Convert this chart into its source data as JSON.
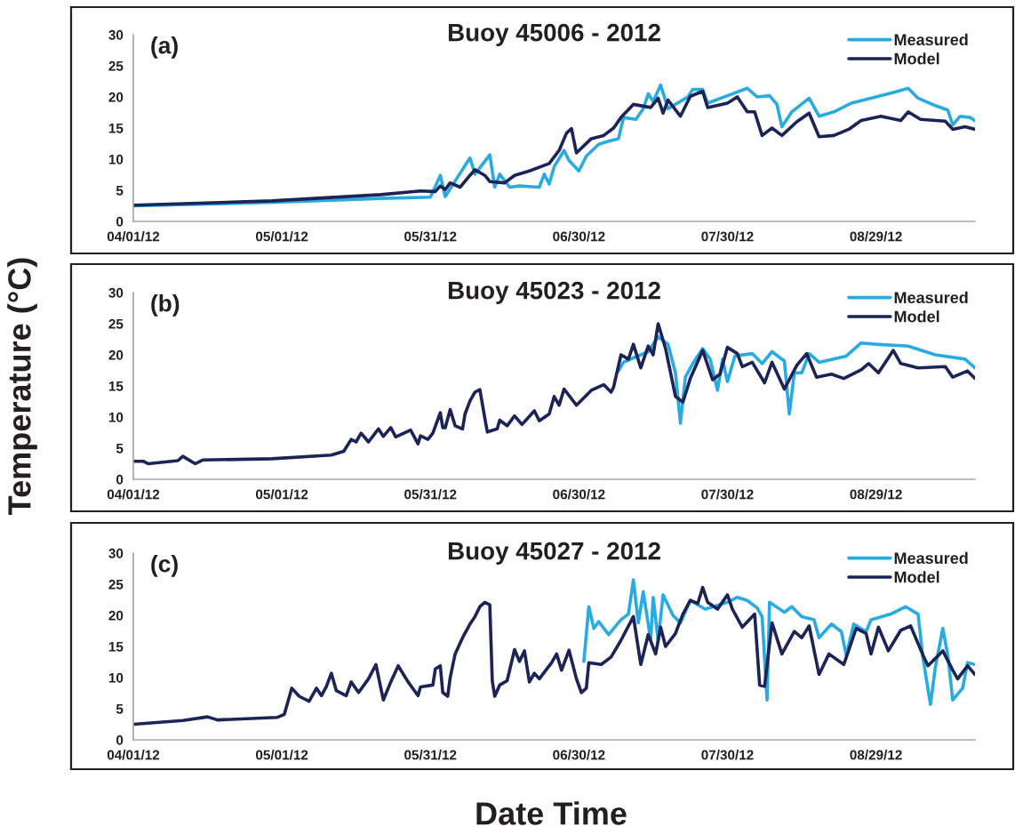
{
  "chart_data": [
    {
      "type": "line",
      "title": "Buoy 45006 - 2012",
      "annotations": [
        "(a)"
      ],
      "legend": "top right",
      "grid": false,
      "xlim": [
        "2012-04-01",
        "2012-09-18"
      ],
      "ylim": [
        0,
        30
      ],
      "yticks": [
        0,
        5,
        10,
        15,
        20,
        25,
        30
      ],
      "xticks": [
        {
          "value": "2012-04-01",
          "label": "04/01/12"
        },
        {
          "value": "2012-05-01",
          "label": "05/01/12"
        },
        {
          "value": "2012-05-31",
          "label": "05/31/12"
        },
        {
          "value": "2012-06-30",
          "label": "06/30/12"
        },
        {
          "value": "2012-07-30",
          "label": "07/30/12"
        },
        {
          "value": "2012-08-29",
          "label": "08/29/12"
        }
      ],
      "series": [
        {
          "name": "Measured",
          "color": "#29abe2",
          "x": [
            "2012-04-01",
            "2012-05-01",
            "2012-05-21",
            "2012-05-31",
            "2012-06-02",
            "2012-06-03",
            "2012-06-08",
            "2012-06-09",
            "2012-06-12",
            "2012-06-13",
            "2012-06-14",
            "2012-06-16",
            "2012-06-18",
            "2012-06-22",
            "2012-06-23",
            "2012-06-24",
            "2012-06-25",
            "2012-06-27",
            "2012-06-28",
            "2012-06-30",
            "2012-07-01T12:00",
            "2012-07-04",
            "2012-07-06",
            "2012-07-08",
            "2012-07-09",
            "2012-07-11T12:00",
            "2012-07-13",
            "2012-07-14",
            "2012-07-15",
            "2012-07-16T12:00",
            "2012-07-18",
            "2012-07-22",
            "2012-07-23",
            "2012-07-25",
            "2012-07-26",
            "2012-07-30",
            "2012-08-03",
            "2012-08-05",
            "2012-08-07T12:00",
            "2012-08-09",
            "2012-08-10",
            "2012-08-12",
            "2012-08-15T12:00",
            "2012-08-17T12:00",
            "2012-08-20T12:00",
            "2012-08-24",
            "2012-08-29",
            "2012-09-01T12:00",
            "2012-09-04T12:00",
            "2012-09-06T12:00",
            "2012-09-10",
            "2012-09-12T12:00",
            "2012-09-13T12:00",
            "2012-09-15",
            "2012-09-17",
            "2012-09-18"
          ],
          "values": [
            2.5,
            3.1,
            3.7,
            3.9,
            7.4,
            4.0,
            10.2,
            7.6,
            10.7,
            5.5,
            7.6,
            5.5,
            5.7,
            5.5,
            7.6,
            6.0,
            8.8,
            11.4,
            9.8,
            8.1,
            10.5,
            12.4,
            12.9,
            13.3,
            16.7,
            16.4,
            18.1,
            20.5,
            19.3,
            21.9,
            18.1,
            20,
            21.2,
            21.2,
            19,
            20.2,
            21.4,
            20,
            20.2,
            18.8,
            15.2,
            17.6,
            19.8,
            16.9,
            17.6,
            19,
            20,
            20.7,
            21.4,
            19.8,
            18.6,
            17.9,
            15.5,
            16.9,
            16.7,
            16.2
          ]
        },
        {
          "name": "Model",
          "color": "#1b2357",
          "x": [
            "2012-04-01",
            "2012-04-29",
            "2012-05-21",
            "2012-05-29",
            "2012-06-01",
            "2012-06-02",
            "2012-06-03",
            "2012-06-04",
            "2012-06-06",
            "2012-06-08",
            "2012-06-09",
            "2012-06-11",
            "2012-06-12",
            "2012-06-15",
            "2012-06-17",
            "2012-06-20",
            "2012-06-24",
            "2012-06-26",
            "2012-06-27T12:00",
            "2012-06-28T12:00",
            "2012-06-29T12:00",
            "2012-07-02T12:00",
            "2012-07-05",
            "2012-07-07",
            "2012-07-08T12:00",
            "2012-07-11",
            "2012-07-14T12:00",
            "2012-07-16",
            "2012-07-17",
            "2012-07-18",
            "2012-07-20T12:00",
            "2012-07-22T12:00",
            "2012-07-25",
            "2012-07-26",
            "2012-07-30",
            "2012-08-01",
            "2012-08-03",
            "2012-08-04T12:00",
            "2012-08-06",
            "2012-08-08",
            "2012-08-10",
            "2012-08-13",
            "2012-08-15T12:00",
            "2012-08-17T12:00",
            "2012-08-20T12:00",
            "2012-08-23T12:00",
            "2012-08-26",
            "2012-08-30",
            "2012-09-03",
            "2012-09-04T12:00",
            "2012-09-07",
            "2012-09-12",
            "2012-09-13T12:00",
            "2012-09-16",
            "2012-09-18"
          ],
          "values": [
            2.6,
            3.3,
            4.3,
            4.9,
            4.8,
            5.7,
            5.1,
            6.2,
            5.5,
            7.4,
            8.3,
            7.4,
            6.4,
            6.2,
            7.4,
            8.1,
            9.3,
            11.4,
            14.2,
            14.9,
            11,
            13.3,
            13.8,
            15,
            16.7,
            18.8,
            18.3,
            19.8,
            17.4,
            19.5,
            16.9,
            20.1,
            20.9,
            18.3,
            19,
            20,
            17.6,
            17.6,
            13.8,
            15,
            13.8,
            16,
            17.4,
            13.6,
            13.8,
            14.8,
            16.2,
            16.9,
            16.2,
            17.6,
            16.4,
            16.1,
            14.8,
            15.2,
            14.8
          ]
        }
      ]
    },
    {
      "type": "line",
      "title": "Buoy 45023 - 2012",
      "annotations": [
        "(b)"
      ],
      "legend": "top right",
      "grid": false,
      "ylabel": "Temperature (°C)",
      "xlim": [
        "2012-04-01",
        "2012-09-18"
      ],
      "ylim": [
        0,
        30
      ],
      "yticks": [
        0,
        5,
        10,
        15,
        20,
        25,
        30
      ],
      "xticks": [
        {
          "value": "2012-04-01",
          "label": "04/01/12"
        },
        {
          "value": "2012-05-01",
          "label": "05/01/12"
        },
        {
          "value": "2012-05-31",
          "label": "05/31/12"
        },
        {
          "value": "2012-06-30",
          "label": "06/30/12"
        },
        {
          "value": "2012-07-30",
          "label": "07/30/12"
        },
        {
          "value": "2012-08-29",
          "label": "08/29/12"
        }
      ],
      "series": [
        {
          "name": "Measured",
          "color": "#29abe2",
          "x": [
            "2012-07-08",
            "2012-07-09",
            "2012-07-11",
            "2012-07-14",
            "2012-07-16",
            "2012-07-18",
            "2012-07-19T12:00",
            "2012-07-20T12:00",
            "2012-07-21T12:00",
            "2012-07-23",
            "2012-07-25",
            "2012-07-26T12:00",
            "2012-07-28",
            "2012-07-29",
            "2012-07-30",
            "2012-07-31T12:00",
            "2012-08-04",
            "2012-08-06",
            "2012-08-08",
            "2012-08-10T12:00",
            "2012-08-11T12:00",
            "2012-08-12T12:00",
            "2012-08-14",
            "2012-08-15T12:00",
            "2012-08-17T12:00",
            "2012-08-23",
            "2012-08-26",
            "2012-08-29",
            "2012-09-04T12:00",
            "2012-09-10",
            "2012-09-16",
            "2012-09-18"
          ],
          "values": [
            17.4,
            18.8,
            19.5,
            20.5,
            22.9,
            21.7,
            17.1,
            9.0,
            16.4,
            18.6,
            21,
            19.3,
            14.3,
            19.3,
            15.7,
            19.8,
            20.2,
            18.6,
            20.5,
            19,
            10.5,
            17.1,
            17.1,
            20.2,
            18.8,
            19.8,
            21.9,
            21.7,
            21.4,
            20,
            19.3,
            17.9
          ]
        },
        {
          "name": "Model",
          "color": "#1b2357",
          "x": [
            "2012-04-01",
            "2012-04-03",
            "2012-04-04",
            "2012-04-10",
            "2012-04-11",
            "2012-04-13T12:00",
            "2012-04-15",
            "2012-04-29",
            "2012-05-11",
            "2012-05-13T12:00",
            "2012-05-15",
            "2012-05-16",
            "2012-05-17",
            "2012-05-18T12:00",
            "2012-05-20T12:00",
            "2012-05-21T12:00",
            "2012-05-23",
            "2012-05-24",
            "2012-05-27",
            "2012-05-28T12:00",
            "2012-05-29",
            "2012-05-30T12:00",
            "2012-05-31T12:00",
            "2012-06-02",
            "2012-06-02T12:00",
            "2012-06-03",
            "2012-06-04",
            "2012-06-05",
            "2012-06-06T12:00",
            "2012-06-07",
            "2012-06-08",
            "2012-06-09",
            "2012-06-10",
            "2012-06-11",
            "2012-06-11T12:00",
            "2012-06-13T12:00",
            "2012-06-14",
            "2012-06-15T12:00",
            "2012-06-17",
            "2012-06-18T12:00",
            "2012-06-21",
            "2012-06-22",
            "2012-06-24",
            "2012-06-25",
            "2012-06-26",
            "2012-06-27",
            "2012-06-29T12:00",
            "2012-07-02T12:00",
            "2012-07-05",
            "2012-07-06T12:00",
            "2012-07-07",
            "2012-07-08T12:00",
            "2012-07-10",
            "2012-07-11",
            "2012-07-12T12:00",
            "2012-07-14",
            "2012-07-15",
            "2012-07-16",
            "2012-07-17T12:00",
            "2012-07-19T12:00",
            "2012-07-21",
            "2012-07-22T12:00",
            "2012-07-25",
            "2012-07-27",
            "2012-07-28T12:00",
            "2012-07-30",
            "2012-08-01",
            "2012-08-02",
            "2012-08-04",
            "2012-08-06T12:00",
            "2012-08-08",
            "2012-08-10T12:00",
            "2012-08-13",
            "2012-08-15",
            "2012-08-17",
            "2012-08-20",
            "2012-08-22T12:00",
            "2012-08-26",
            "2012-08-27T12:00",
            "2012-08-29T12:00",
            "2012-09-01T12:00",
            "2012-09-03",
            "2012-09-06T12:00",
            "2012-09-12",
            "2012-09-13T12:00",
            "2012-09-16T12:00",
            "2012-09-18"
          ],
          "values": [
            2.9,
            2.9,
            2.5,
            3.0,
            3.7,
            2.5,
            3.1,
            3.3,
            3.9,
            4.5,
            6.4,
            6.0,
            7.4,
            6.0,
            8.1,
            6.9,
            8.3,
            6.8,
            7.9,
            5.7,
            7.0,
            6.4,
            7.4,
            10.7,
            8.3,
            8.3,
            11.2,
            8.6,
            8.1,
            10.5,
            12.6,
            14,
            14.4,
            9.8,
            7.6,
            8.1,
            9.5,
            8.6,
            10.2,
            8.8,
            11,
            9.4,
            10.5,
            13.3,
            11.9,
            14.5,
            11.9,
            14.3,
            15.2,
            14,
            14.8,
            20,
            19.3,
            21.7,
            17.9,
            21.4,
            20,
            25,
            21,
            13.3,
            12.4,
            16.2,
            20.7,
            16,
            16.9,
            21.2,
            20.2,
            18.1,
            18.8,
            15.5,
            18.8,
            14.5,
            18.3,
            20.2,
            16.4,
            16.9,
            16.2,
            17.6,
            18.6,
            17.1,
            20.7,
            18.6,
            17.9,
            18.1,
            16.4,
            17.4,
            16.2
          ]
        }
      ]
    },
    {
      "type": "line",
      "title": "Buoy 45027 - 2012",
      "annotations": [
        "(c)"
      ],
      "legend": "top right",
      "grid": false,
      "xlabel": "Date Time",
      "xlim": [
        "2012-04-01",
        "2012-09-18"
      ],
      "ylim": [
        0,
        30
      ],
      "yticks": [
        0,
        5,
        10,
        15,
        20,
        25,
        30
      ],
      "xticks": [
        {
          "value": "2012-04-01",
          "label": "04/01/12"
        },
        {
          "value": "2012-05-01",
          "label": "05/01/12"
        },
        {
          "value": "2012-05-31",
          "label": "05/31/12"
        },
        {
          "value": "2012-06-30",
          "label": "06/30/12"
        },
        {
          "value": "2012-07-30",
          "label": "07/30/12"
        },
        {
          "value": "2012-08-29",
          "label": "08/29/12"
        }
      ],
      "series": [
        {
          "name": "Measured",
          "color": "#29abe2",
          "x": [
            "2012-07-01",
            "2012-07-02",
            "2012-07-03",
            "2012-07-04",
            "2012-07-06",
            "2012-07-08T12:00",
            "2012-07-10",
            "2012-07-11",
            "2012-07-12",
            "2012-07-13",
            "2012-07-14T12:00",
            "2012-07-15",
            "2012-07-16",
            "2012-07-17",
            "2012-07-19",
            "2012-07-20T12:00",
            "2012-07-22T12:00",
            "2012-07-25T12:00",
            "2012-07-30",
            "2012-08-01",
            "2012-08-03",
            "2012-08-05",
            "2012-08-06",
            "2012-08-07",
            "2012-08-07T12:00",
            "2012-08-10T12:00",
            "2012-08-12",
            "2012-08-14",
            "2012-08-16T12:00",
            "2012-08-17T12:00",
            "2012-08-20",
            "2012-08-22",
            "2012-08-23",
            "2012-08-24T12:00",
            "2012-08-27",
            "2012-08-28",
            "2012-09-01",
            "2012-09-04",
            "2012-09-06T12:00",
            "2012-09-07T12:00",
            "2012-09-09",
            "2012-09-10",
            "2012-09-11T12:00",
            "2012-09-12T12:00",
            "2012-09-13T12:00",
            "2012-09-15T12:00",
            "2012-09-16T12:00",
            "2012-09-18"
          ],
          "values": [
            12.6,
            21.4,
            17.9,
            19,
            16.9,
            19.3,
            20.2,
            25.7,
            18.8,
            23.8,
            16,
            22.9,
            16,
            23.3,
            20,
            18.8,
            22.4,
            21,
            22.1,
            22.9,
            22.4,
            21.2,
            19.8,
            6.4,
            22.1,
            20.5,
            21.4,
            19.8,
            19.3,
            16.4,
            18.6,
            17.4,
            13.6,
            18.6,
            17.4,
            19.3,
            20.2,
            21.4,
            20.2,
            13.1,
            5.7,
            11.7,
            17.9,
            13.6,
            6.4,
            8.3,
            12.4,
            12.1
          ]
        },
        {
          "name": "Model",
          "color": "#1b2357",
          "x": [
            "2012-04-01",
            "2012-04-11",
            "2012-04-16",
            "2012-04-18",
            "2012-04-30",
            "2012-05-01T12:00",
            "2012-05-03",
            "2012-05-04T12:00",
            "2012-05-06T12:00",
            "2012-05-08",
            "2012-05-09",
            "2012-05-10",
            "2012-05-11",
            "2012-05-12",
            "2012-05-14",
            "2012-05-15",
            "2012-05-16T12:00",
            "2012-05-18T12:00",
            "2012-05-20",
            "2012-05-21T12:00",
            "2012-05-23",
            "2012-05-24T12:00",
            "2012-05-26T12:00",
            "2012-05-28T12:00",
            "2012-05-29",
            "2012-05-31T12:00",
            "2012-06-01",
            "2012-06-02",
            "2012-06-02T12:00",
            "2012-06-03T12:00",
            "2012-06-04",
            "2012-06-05",
            "2012-06-06T12:00",
            "2012-06-08",
            "2012-06-09",
            "2012-06-10",
            "2012-06-11",
            "2012-06-12",
            "2012-06-12T12:00",
            "2012-06-13",
            "2012-06-14",
            "2012-06-15T12:00",
            "2012-06-17",
            "2012-06-18",
            "2012-06-19",
            "2012-06-20",
            "2012-06-21",
            "2012-06-22",
            "2012-06-24T12:00",
            "2012-06-25T12:00",
            "2012-06-26T12:00",
            "2012-06-28",
            "2012-06-29T12:00",
            "2012-06-30T12:00",
            "2012-07-01T12:00",
            "2012-07-02",
            "2012-07-04T12:00",
            "2012-07-06T12:00",
            "2012-07-08T12:00",
            "2012-07-11",
            "2012-07-12T12:00",
            "2012-07-14",
            "2012-07-15T12:00",
            "2012-07-16T12:00",
            "2012-07-17T12:00",
            "2012-07-19T12:00",
            "2012-07-21",
            "2012-07-22T12:00",
            "2012-07-24",
            "2012-07-25",
            "2012-07-26",
            "2012-07-28",
            "2012-07-30",
            "2012-07-31",
            "2012-08-02",
            "2012-08-04T12:00",
            "2012-08-05T12:00",
            "2012-08-06T12:00",
            "2012-08-08",
            "2012-08-10",
            "2012-08-12T12:00",
            "2012-08-14",
            "2012-08-15T12:00",
            "2012-08-17T12:00",
            "2012-08-19T12:00",
            "2012-08-22T12:00",
            "2012-08-25",
            "2012-08-27",
            "2012-08-28",
            "2012-08-29T12:00",
            "2012-08-31T12:00",
            "2012-09-03",
            "2012-09-05",
            "2012-09-07T12:00",
            "2012-09-08T12:00",
            "2012-09-11T12:00",
            "2012-09-13T12:00",
            "2012-09-14T12:00",
            "2012-09-16T12:00",
            "2012-09-18"
          ],
          "values": [
            2.5,
            3.1,
            3.7,
            3.2,
            3.6,
            4.1,
            8.3,
            7.0,
            6.2,
            8.3,
            7.1,
            8.6,
            10.7,
            7.9,
            7.1,
            9.3,
            7.6,
            9.8,
            12.1,
            6.4,
            9.3,
            11.9,
            9.3,
            7.1,
            8.5,
            8.8,
            11.4,
            11.9,
            7.6,
            7.0,
            10,
            13.8,
            16.4,
            18.6,
            19.8,
            21.4,
            22.1,
            21.7,
            9.5,
            7.0,
            8.8,
            9.5,
            14.5,
            12.6,
            14.3,
            9.3,
            10.7,
            9.8,
            12.4,
            13.8,
            11.2,
            14.4,
            9.8,
            7.6,
            8.3,
            12.4,
            12.1,
            13.3,
            16,
            19.8,
            12.1,
            16.9,
            13.8,
            18.1,
            15,
            17.1,
            20.2,
            22.4,
            21.9,
            24.5,
            22.1,
            21,
            23.3,
            21,
            18.1,
            20.2,
            8.8,
            8.6,
            18.8,
            13.8,
            17.4,
            16.4,
            18.3,
            10.5,
            13.8,
            12.1,
            17.9,
            17.1,
            13.8,
            18.1,
            14.3,
            17.6,
            18.3,
            13.6,
            11.9,
            14.3,
            11.2,
            9.8,
            11.9,
            10.5
          ]
        }
      ]
    }
  ]
}
